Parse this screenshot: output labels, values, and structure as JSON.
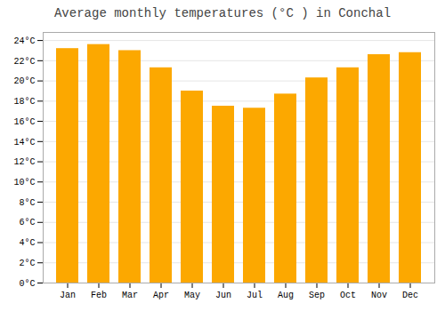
{
  "chart_data": {
    "type": "bar",
    "title": "Average monthly temperatures (°C ) in Conchal",
    "categories": [
      "Jan",
      "Feb",
      "Mar",
      "Apr",
      "May",
      "Jun",
      "Jul",
      "Aug",
      "Sep",
      "Oct",
      "Nov",
      "Dec"
    ],
    "values": [
      23.2,
      23.6,
      23.0,
      21.3,
      19.0,
      17.5,
      17.3,
      18.7,
      20.3,
      21.3,
      22.6,
      22.8
    ],
    "color": "#FCA800",
    "ylim": [
      0,
      24.8
    ],
    "yticks": [
      {
        "value": 0,
        "label": "0°C"
      },
      {
        "value": 2,
        "label": "2°C"
      },
      {
        "value": 4,
        "label": "4°C"
      },
      {
        "value": 6,
        "label": "6°C"
      },
      {
        "value": 8,
        "label": "8°C"
      },
      {
        "value": 10,
        "label": "10°C"
      },
      {
        "value": 12,
        "label": "12°C"
      },
      {
        "value": 14,
        "label": "14°C"
      },
      {
        "value": 16,
        "label": "16°C"
      },
      {
        "value": 18,
        "label": "18°C"
      },
      {
        "value": 20,
        "label": "20°C"
      },
      {
        "value": 22,
        "label": "22°C"
      },
      {
        "value": 24,
        "label": "24°C"
      }
    ],
    "grid": true
  }
}
